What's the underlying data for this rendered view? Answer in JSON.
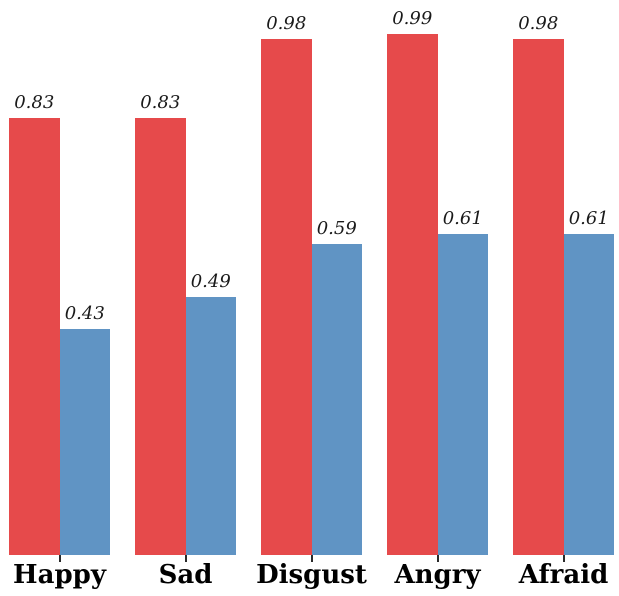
{
  "background_color": "#ffffff",
  "chart_data": {
    "type": "bar",
    "categories": [
      "Happy",
      "Sad",
      "Disgust",
      "Angry",
      "Afraid"
    ],
    "series": [
      {
        "name": "red",
        "color": "#e64a4b",
        "values": [
          0.83,
          0.83,
          0.98,
          0.99,
          0.98
        ]
      },
      {
        "name": "blue",
        "color": "#6094c4",
        "values": [
          0.43,
          0.49,
          0.59,
          0.61,
          0.61
        ]
      }
    ],
    "value_labels": true,
    "value_label_style": "italic",
    "value_label_color": "#1a1a1a",
    "category_label_color": "#000000",
    "tick_color": "#2a2a2a",
    "ylim": [
      0,
      1.05
    ],
    "grid": false,
    "legend_position": "none",
    "axes_visible": false
  }
}
